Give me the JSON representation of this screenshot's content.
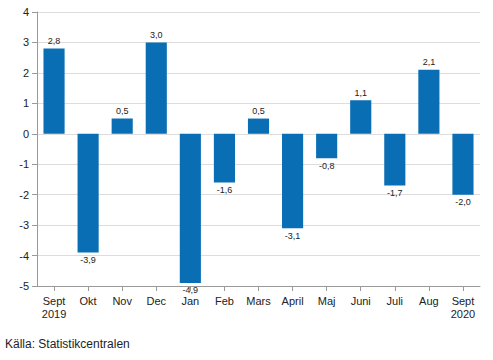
{
  "chart_data": {
    "type": "bar",
    "categories": [
      "Sept\n2019",
      "Okt",
      "Nov",
      "Dec",
      "Jan",
      "Feb",
      "Mars",
      "April",
      "Maj",
      "Juni",
      "Juli",
      "Aug",
      "Sept\n2020"
    ],
    "values": [
      2.8,
      -3.9,
      0.5,
      3.0,
      -4.9,
      -1.6,
      0.5,
      -3.1,
      -0.8,
      1.1,
      -1.7,
      2.1,
      -2.0
    ],
    "value_labels": [
      "2,8",
      "-3,9",
      "0,5",
      "3,0",
      "-4,9",
      "-1,6",
      "0,5",
      "-3,1",
      "-0,8",
      "1,1",
      "-1,7",
      "2,1",
      "-2,0"
    ],
    "data_labels": true,
    "color": "#0a6eb4",
    "ylim": [
      -5,
      4
    ],
    "yticks": [
      -5,
      -4,
      -3,
      -2,
      -1,
      0,
      1,
      2,
      3,
      4
    ],
    "grid": true,
    "source": "Källa: Statistikcentralen"
  }
}
